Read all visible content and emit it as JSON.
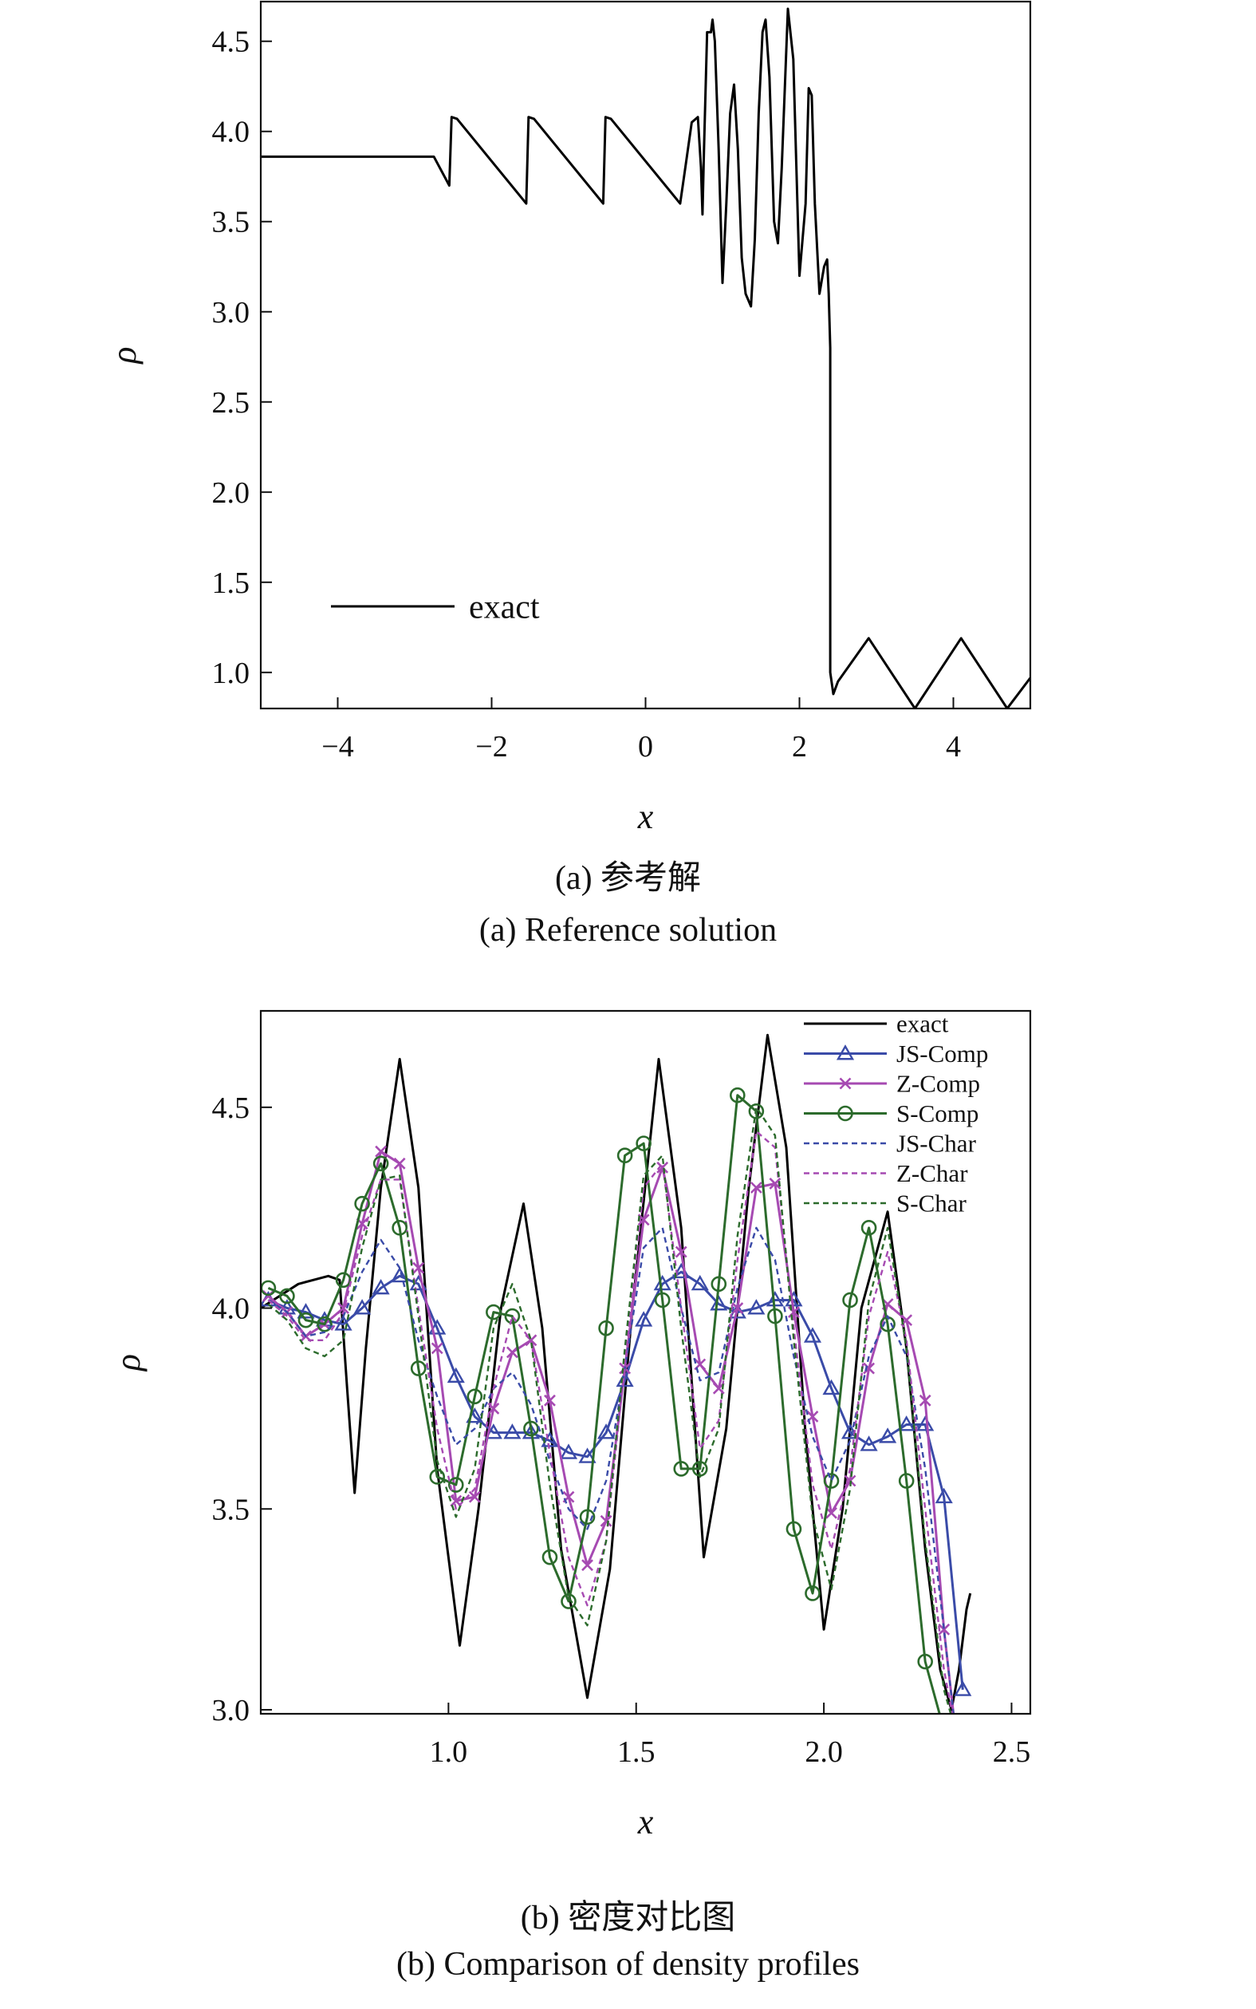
{
  "chart_data": [
    {
      "type": "line",
      "xlabel": "x",
      "ylabel": "ρ",
      "xlim": [
        -5,
        5
      ],
      "ylim": [
        0.8,
        4.72
      ],
      "xticks": [
        -4,
        -2,
        0,
        2,
        4
      ],
      "xtick_labels": [
        "−4",
        "−2",
        "0",
        "2",
        "4"
      ],
      "yticks": [
        1.0,
        1.5,
        2.0,
        2.5,
        3.0,
        3.5,
        4.0,
        4.5
      ],
      "ytick_labels": [
        "1.0",
        "1.5",
        "2.0",
        "2.5",
        "3.0",
        "3.5",
        "4.0",
        "4.5"
      ],
      "grid": false,
      "legend_position": "bottom-left",
      "series": [
        {
          "name": "exact",
          "color": "#000000",
          "x": [
            -5.0,
            -2.75,
            -2.55,
            -2.52,
            -2.45,
            -1.55,
            -1.52,
            -1.45,
            -0.55,
            -0.52,
            -0.45,
            0.45,
            0.5,
            0.6,
            0.68,
            0.72,
            0.74,
            0.76,
            0.8,
            0.85,
            0.87,
            0.9,
            0.95,
            1.0,
            1.05,
            1.1,
            1.15,
            1.2,
            1.25,
            1.3,
            1.37,
            1.42,
            1.47,
            1.52,
            1.56,
            1.61,
            1.67,
            1.72,
            1.77,
            1.85,
            1.92,
            2.0,
            2.08,
            2.12,
            2.16,
            2.2,
            2.26,
            2.32,
            2.36,
            2.38,
            2.4,
            2.4,
            2.44,
            2.5,
            2.9,
            3.5,
            4.1,
            4.7,
            5.0
          ],
          "y": [
            3.86,
            3.86,
            3.7,
            4.08,
            4.07,
            3.6,
            4.08,
            4.07,
            3.6,
            4.08,
            4.07,
            3.6,
            3.75,
            4.05,
            4.08,
            3.8,
            3.54,
            3.9,
            4.55,
            4.55,
            4.62,
            4.5,
            3.9,
            3.16,
            3.6,
            4.1,
            4.26,
            3.9,
            3.3,
            3.1,
            3.03,
            3.4,
            4.1,
            4.55,
            4.62,
            4.3,
            3.5,
            3.38,
            3.8,
            4.68,
            4.4,
            3.2,
            3.6,
            4.24,
            4.2,
            3.6,
            3.1,
            3.25,
            3.29,
            3.1,
            2.8,
            1.0,
            0.88,
            0.95,
            1.19,
            0.8,
            1.19,
            0.8,
            0.97
          ]
        }
      ]
    },
    {
      "type": "line",
      "xlabel": "x",
      "ylabel": "ρ",
      "xlim": [
        0.5,
        2.55
      ],
      "ylim": [
        2.99,
        4.74
      ],
      "xticks": [
        1.0,
        1.5,
        2.0,
        2.5
      ],
      "xtick_labels": [
        "1.0",
        "1.5",
        "2.0",
        "2.5"
      ],
      "yticks": [
        3.0,
        3.5,
        4.0,
        4.5
      ],
      "ytick_labels": [
        "3.0",
        "3.5",
        "4.0",
        "4.5"
      ],
      "grid": false,
      "legend_position": "top-right",
      "series": [
        {
          "name": "exact",
          "color": "#000000",
          "style": "solid",
          "x": [
            0.5,
            0.6,
            0.68,
            0.71,
            0.73,
            0.75,
            0.78,
            0.82,
            0.87,
            0.92,
            0.97,
            1.03,
            1.08,
            1.14,
            1.2,
            1.25,
            1.3,
            1.37,
            1.43,
            1.49,
            1.56,
            1.62,
            1.68,
            1.74,
            1.8,
            1.85,
            1.9,
            1.95,
            2.0,
            2.05,
            2.1,
            2.17,
            2.22,
            2.27,
            2.31,
            2.34,
            2.36,
            2.38,
            2.39
          ],
          "y": [
            4.0,
            4.06,
            4.08,
            4.07,
            3.8,
            3.54,
            3.9,
            4.3,
            4.62,
            4.3,
            3.6,
            3.16,
            3.5,
            4.0,
            4.26,
            3.95,
            3.4,
            3.03,
            3.35,
            4.0,
            4.62,
            4.2,
            3.38,
            3.7,
            4.3,
            4.68,
            4.4,
            3.7,
            3.2,
            3.5,
            4.0,
            4.24,
            3.9,
            3.4,
            3.1,
            3.0,
            3.1,
            3.25,
            3.29
          ]
        },
        {
          "name": "JS-Comp",
          "color": "#3a4ba8",
          "style": "solid",
          "marker": "triangle",
          "x": [
            0.52,
            0.57,
            0.62,
            0.67,
            0.72,
            0.77,
            0.82,
            0.87,
            0.92,
            0.97,
            1.02,
            1.07,
            1.12,
            1.17,
            1.22,
            1.27,
            1.32,
            1.37,
            1.42,
            1.47,
            1.52,
            1.57,
            1.62,
            1.67,
            1.72,
            1.77,
            1.82,
            1.87,
            1.92,
            1.97,
            2.02,
            2.07,
            2.12,
            2.17,
            2.22,
            2.27,
            2.32,
            2.37
          ],
          "y": [
            4.02,
            4.0,
            3.99,
            3.97,
            3.96,
            4.0,
            4.05,
            4.08,
            4.06,
            3.95,
            3.83,
            3.73,
            3.69,
            3.69,
            3.69,
            3.67,
            3.64,
            3.63,
            3.69,
            3.82,
            3.97,
            4.06,
            4.09,
            4.06,
            4.01,
            3.99,
            4.0,
            4.02,
            4.02,
            3.93,
            3.8,
            3.69,
            3.66,
            3.68,
            3.71,
            3.71,
            3.53,
            3.05
          ]
        },
        {
          "name": "Z-Comp",
          "color": "#a64ab2",
          "style": "solid",
          "marker": "x",
          "x": [
            0.52,
            0.57,
            0.62,
            0.67,
            0.72,
            0.77,
            0.82,
            0.87,
            0.92,
            0.97,
            1.02,
            1.07,
            1.12,
            1.17,
            1.22,
            1.27,
            1.32,
            1.37,
            1.42,
            1.47,
            1.52,
            1.57,
            1.62,
            1.67,
            1.72,
            1.77,
            1.82,
            1.87,
            1.92,
            1.97,
            2.02,
            2.07,
            2.12,
            2.17,
            2.22,
            2.27,
            2.32,
            2.35
          ],
          "y": [
            4.03,
            3.99,
            3.93,
            3.96,
            4.0,
            4.21,
            4.39,
            4.36,
            4.1,
            3.9,
            3.52,
            3.53,
            3.75,
            3.89,
            3.92,
            3.77,
            3.53,
            3.36,
            3.47,
            3.85,
            4.22,
            4.35,
            4.14,
            3.86,
            3.8,
            4.0,
            4.3,
            4.31,
            3.99,
            3.73,
            3.49,
            3.57,
            3.85,
            4.01,
            3.97,
            3.77,
            3.2,
            2.95
          ]
        },
        {
          "name": "S-Comp",
          "color": "#2c6b2c",
          "style": "solid",
          "marker": "circle",
          "x": [
            0.52,
            0.57,
            0.62,
            0.67,
            0.72,
            0.77,
            0.82,
            0.87,
            0.92,
            0.97,
            1.02,
            1.07,
            1.12,
            1.17,
            1.22,
            1.27,
            1.32,
            1.37,
            1.42,
            1.47,
            1.52,
            1.57,
            1.62,
            1.67,
            1.72,
            1.77,
            1.82,
            1.87,
            1.92,
            1.97,
            2.02,
            2.07,
            2.12,
            2.17,
            2.22,
            2.27,
            2.32,
            2.35
          ],
          "y": [
            4.05,
            4.03,
            3.97,
            3.96,
            4.07,
            4.26,
            4.36,
            4.2,
            3.85,
            3.58,
            3.56,
            3.78,
            3.99,
            3.98,
            3.7,
            3.38,
            3.27,
            3.48,
            3.95,
            4.38,
            4.41,
            4.02,
            3.6,
            3.6,
            4.06,
            4.53,
            4.49,
            3.98,
            3.45,
            3.29,
            3.57,
            4.02,
            4.2,
            3.96,
            3.57,
            3.12,
            2.95,
            2.95
          ]
        },
        {
          "name": "JS-Char",
          "color": "#3a4ba8",
          "style": "dashed",
          "x": [
            0.52,
            0.57,
            0.62,
            0.67,
            0.72,
            0.77,
            0.82,
            0.87,
            0.92,
            0.97,
            1.02,
            1.07,
            1.12,
            1.17,
            1.22,
            1.27,
            1.32,
            1.37,
            1.42,
            1.47,
            1.52,
            1.57,
            1.62,
            1.67,
            1.72,
            1.77,
            1.82,
            1.87,
            1.92,
            1.97,
            2.02,
            2.07,
            2.12,
            2.17,
            2.22,
            2.27,
            2.32,
            2.35
          ],
          "y": [
            4.02,
            3.99,
            3.93,
            3.94,
            3.98,
            4.09,
            4.17,
            4.1,
            3.92,
            3.78,
            3.66,
            3.7,
            3.8,
            3.84,
            3.76,
            3.62,
            3.5,
            3.45,
            3.57,
            3.85,
            4.15,
            4.2,
            4.0,
            3.82,
            3.84,
            4.05,
            4.2,
            4.12,
            3.88,
            3.68,
            3.57,
            3.67,
            3.88,
            3.98,
            3.88,
            3.6,
            3.2,
            2.95
          ]
        },
        {
          "name": "Z-Char",
          "color": "#a64ab2",
          "style": "dashed",
          "x": [
            0.52,
            0.57,
            0.62,
            0.67,
            0.72,
            0.77,
            0.82,
            0.87,
            0.92,
            0.97,
            1.02,
            1.07,
            1.12,
            1.17,
            1.22,
            1.27,
            1.32,
            1.37,
            1.42,
            1.47,
            1.52,
            1.57,
            1.62,
            1.67,
            1.72,
            1.77,
            1.82,
            1.87,
            1.92,
            1.97,
            2.02,
            2.07,
            2.12,
            2.17,
            2.22,
            2.27,
            2.32,
            2.35
          ],
          "y": [
            4.02,
            3.98,
            3.92,
            3.92,
            3.99,
            4.18,
            4.32,
            4.32,
            4.0,
            3.7,
            3.5,
            3.55,
            3.8,
            3.98,
            3.92,
            3.64,
            3.38,
            3.26,
            3.42,
            3.86,
            4.3,
            4.36,
            4.0,
            3.65,
            3.72,
            4.12,
            4.44,
            4.4,
            3.95,
            3.56,
            3.4,
            3.6,
            3.98,
            4.14,
            3.92,
            3.5,
            3.1,
            2.95
          ]
        },
        {
          "name": "S-Char",
          "color": "#2c6b2c",
          "style": "dashed",
          "x": [
            0.52,
            0.57,
            0.62,
            0.67,
            0.72,
            0.77,
            0.82,
            0.87,
            0.92,
            0.97,
            1.02,
            1.07,
            1.12,
            1.17,
            1.22,
            1.27,
            1.32,
            1.37,
            1.42,
            1.47,
            1.52,
            1.57,
            1.62,
            1.67,
            1.72,
            1.77,
            1.82,
            1.87,
            1.92,
            1.97,
            2.02,
            2.07,
            2.12,
            2.17,
            2.22,
            2.27,
            2.32,
            2.35
          ],
          "y": [
            4.01,
            3.97,
            3.9,
            3.88,
            3.92,
            4.15,
            4.32,
            4.33,
            3.98,
            3.62,
            3.48,
            3.6,
            3.95,
            4.06,
            3.92,
            3.56,
            3.28,
            3.21,
            3.42,
            3.9,
            4.33,
            4.38,
            3.95,
            3.58,
            3.7,
            4.18,
            4.5,
            4.43,
            3.92,
            3.48,
            3.3,
            3.55,
            4.02,
            4.2,
            3.9,
            3.42,
            3.05,
            2.95
          ]
        }
      ]
    }
  ],
  "captions": {
    "a_cn": "(a) 参考解",
    "a_en": "(a) Reference solution",
    "b_cn": "(b) 密度对比图",
    "b_en": "(b) Comparison of density profiles"
  }
}
